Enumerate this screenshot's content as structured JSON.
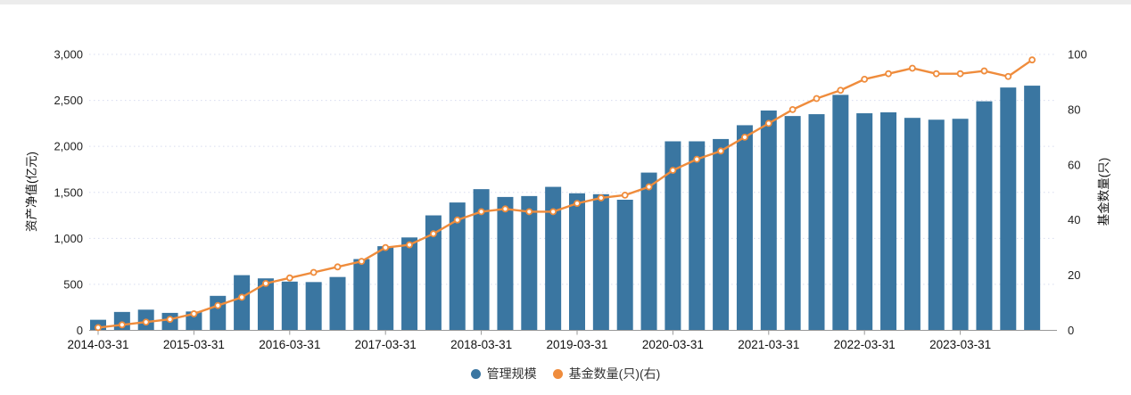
{
  "chart_data": {
    "type": "bar+line combo",
    "categories": [
      "2014-03-31",
      "2014-06-30",
      "2014-09-30",
      "2014-12-31",
      "2015-03-31",
      "2015-06-30",
      "2015-09-30",
      "2015-12-31",
      "2016-03-31",
      "2016-06-30",
      "2016-09-30",
      "2016-12-31",
      "2017-03-31",
      "2017-06-30",
      "2017-09-30",
      "2017-12-31",
      "2018-03-31",
      "2018-06-30",
      "2018-09-30",
      "2018-12-31",
      "2019-03-31",
      "2019-06-30",
      "2019-09-30",
      "2019-12-31",
      "2020-03-31",
      "2020-06-30",
      "2020-09-30",
      "2020-12-31",
      "2021-03-31",
      "2021-06-30",
      "2021-09-30",
      "2021-12-31",
      "2022-03-31",
      "2022-06-30",
      "2022-09-30",
      "2022-12-31",
      "2023-03-31",
      "2023-06-30",
      "2023-09-30",
      "2023-12-31"
    ],
    "series": [
      {
        "name": "管理规模",
        "type": "bar",
        "axis": "left",
        "color": "#3a76a1",
        "values": [
          115,
          200,
          225,
          190,
          205,
          375,
          600,
          565,
          530,
          525,
          580,
          775,
          915,
          1010,
          1250,
          1390,
          1535,
          1450,
          1460,
          1560,
          1490,
          1480,
          1420,
          1715,
          2055,
          2055,
          2080,
          2230,
          2390,
          2330,
          2350,
          2560,
          2360,
          2370,
          2310,
          2290,
          2300,
          2490,
          2640,
          2660
        ]
      },
      {
        "name": "基金数量(只)(右)",
        "type": "line",
        "axis": "right",
        "color": "#ef8c3c",
        "marker_fill": "#ffffff",
        "values": [
          1,
          2,
          3,
          4,
          6,
          9,
          12,
          17,
          19,
          21,
          23,
          25,
          30,
          31,
          35,
          40,
          43,
          44,
          43,
          43,
          46,
          48,
          49,
          52,
          58,
          62,
          65,
          70,
          75,
          80,
          84,
          87,
          91,
          93,
          95,
          93,
          93,
          94,
          92,
          98
        ]
      }
    ],
    "left_axis": {
      "title": "资产净值(亿元)",
      "min": 0,
      "max": 3000,
      "tick_interval": 500,
      "tick_labels": [
        "0",
        "500",
        "1,000",
        "1,500",
        "2,000",
        "2,500",
        "3,000"
      ]
    },
    "right_axis": {
      "title": "基金数量(只)",
      "min": 0,
      "max": 100,
      "tick_interval": 20,
      "tick_labels": [
        "0",
        "20",
        "40",
        "60",
        "80",
        "100"
      ]
    },
    "x_axis": {
      "labeled_categories": [
        "2014-03-31",
        "2015-03-31",
        "2016-03-31",
        "2017-03-31",
        "2018-03-31",
        "2019-03-31",
        "2020-03-31",
        "2021-03-31",
        "2022-03-31",
        "2023-03-31"
      ],
      "label_every_n": 4
    },
    "legend": [
      {
        "label": "管理规模",
        "color": "#3a76a1"
      },
      {
        "label": "基金数量(只)(右)",
        "color": "#ef8c3c"
      }
    ],
    "grid": "dotted horizontal",
    "legend_position": "bottom-center"
  }
}
